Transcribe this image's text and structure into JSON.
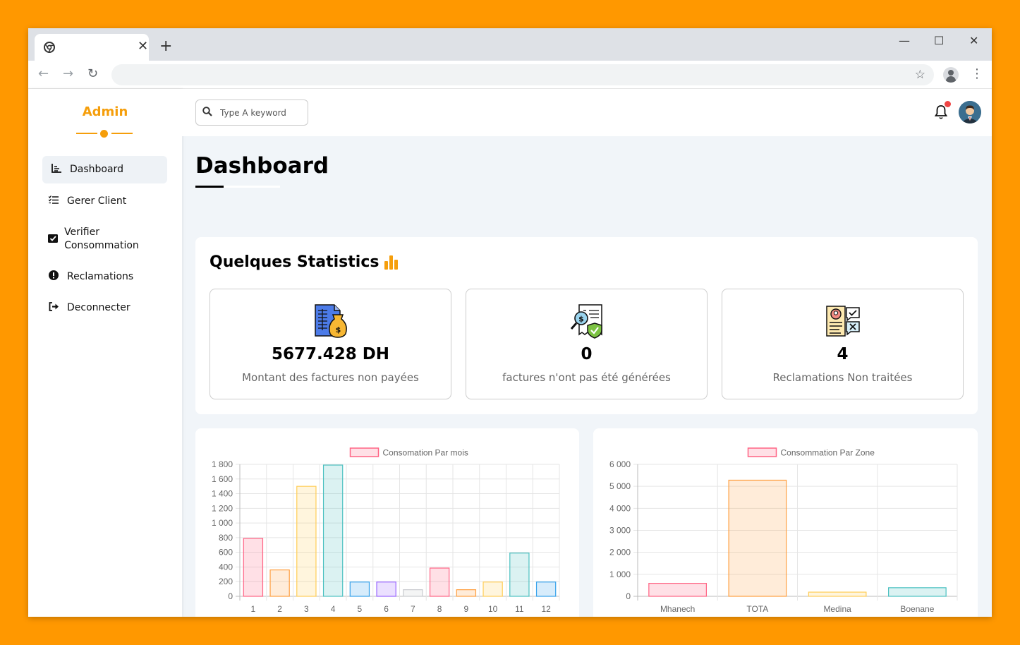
{
  "browser": {
    "tab": {
      "title": ""
    },
    "address": {
      "url": ""
    }
  },
  "sidebar": {
    "brand": "Admin",
    "items": [
      {
        "label": "Dashboard",
        "icon": "chart-line-icon",
        "active": true
      },
      {
        "label": "Gerer Client",
        "icon": "task-list-icon",
        "active": false
      },
      {
        "label": "Verifier Consommation",
        "icon": "check-square-icon",
        "active": false
      },
      {
        "label": "Reclamations",
        "icon": "exclamation-circle-icon",
        "active": false
      },
      {
        "label": "Deconnecter",
        "icon": "sign-out-icon",
        "active": false
      }
    ]
  },
  "topbar": {
    "search_placeholder": "Type A keyword",
    "notification_dot_color": "#ef4444"
  },
  "main": {
    "title": "Dashboard",
    "stats": {
      "title": "Quelques Statistics",
      "cards": [
        {
          "value": "5677.428 DH",
          "label": "Montant des factures non payées",
          "icon": "invoice-money-bag-icon"
        },
        {
          "value": "0",
          "label": "factures n'ont pas été générées",
          "icon": "invoice-search-shield-icon"
        },
        {
          "value": "4",
          "label": "Reclamations Non traitées",
          "icon": "complaint-document-icon"
        }
      ]
    }
  },
  "colors": {
    "accent": "#f59e0b",
    "page_background": "#f1f5f9",
    "outer_background": "#ff9800"
  },
  "chart_data": [
    {
      "type": "bar",
      "legend": "Consomation Par mois",
      "categories": [
        "1",
        "2",
        "3",
        "4",
        "5",
        "6",
        "7",
        "8",
        "9",
        "10",
        "11",
        "12"
      ],
      "values": [
        790,
        360,
        1500,
        1790,
        195,
        195,
        90,
        385,
        90,
        195,
        590,
        195
      ],
      "ylim": [
        0,
        1800
      ],
      "yticks": [
        "1 800",
        "1 600",
        "1 400",
        "1 200",
        "1 000",
        "800",
        "600",
        "400",
        "200",
        "0"
      ],
      "ytick_values": [
        1800,
        1600,
        1400,
        1200,
        1000,
        800,
        600,
        400,
        200,
        0
      ],
      "grid": true,
      "legend_position": "top",
      "bar_fills": [
        "rgba(255,99,132,0.2)",
        "rgba(255,159,64,0.2)",
        "rgba(255,205,86,0.2)",
        "rgba(75,192,192,0.2)",
        "rgba(54,162,235,0.2)",
        "rgba(153,102,255,0.2)",
        "rgba(201,203,207,0.2)",
        "rgba(255,99,132,0.2)",
        "rgba(255,159,64,0.2)",
        "rgba(255,205,86,0.2)",
        "rgba(75,192,192,0.2)",
        "rgba(54,162,235,0.2)"
      ],
      "bar_borders": [
        "#ff6384",
        "#ff9f40",
        "#ffcd56",
        "#4bc0c0",
        "#36a2eb",
        "#9966ff",
        "#c9cbcf",
        "#ff6384",
        "#ff9f40",
        "#ffcd56",
        "#4bc0c0",
        "#36a2eb"
      ]
    },
    {
      "type": "bar",
      "legend": "Consommation Par Zone",
      "categories": [
        "Mhanech",
        "TOTA",
        "Medina",
        "Boenane"
      ],
      "values": [
        590,
        5280,
        190,
        390
      ],
      "ylim": [
        0,
        6000
      ],
      "yticks": [
        "6 000",
        "5 000",
        "4 000",
        "3 000",
        "2 000",
        "1 000",
        "0"
      ],
      "ytick_values": [
        6000,
        5000,
        4000,
        3000,
        2000,
        1000,
        0
      ],
      "grid": true,
      "legend_position": "top",
      "bar_fills": [
        "rgba(255,99,132,0.2)",
        "rgba(255,159,64,0.2)",
        "rgba(255,205,86,0.2)",
        "rgba(75,192,192,0.2)"
      ],
      "bar_borders": [
        "#ff6384",
        "#ff9f40",
        "#ffcd56",
        "#4bc0c0"
      ]
    }
  ]
}
